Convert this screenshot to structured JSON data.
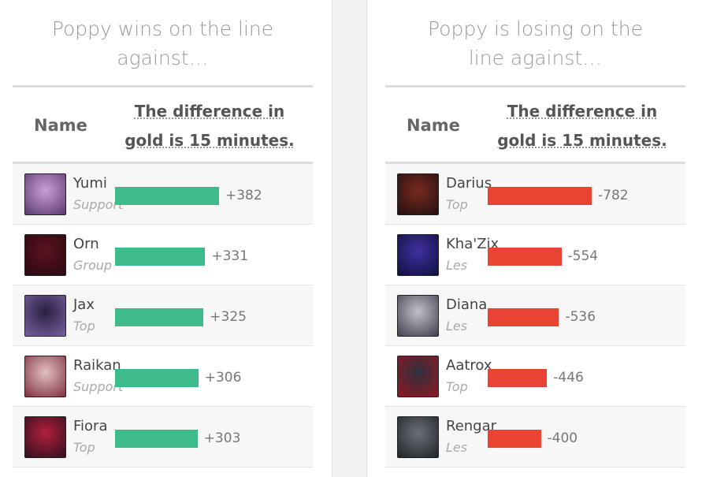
{
  "panels": [
    {
      "title": "Poppy wins on the line against…",
      "header_name": "Name",
      "header_diff": "The difference in gold is 15 minutes.",
      "bar_color": "#3dbb8b",
      "rows": [
        {
          "name": "Yumi",
          "role": "Support",
          "value": 382,
          "value_label": "+382"
        },
        {
          "name": "Orn",
          "role": "Group",
          "value": 331,
          "value_label": "+331"
        },
        {
          "name": "Jax",
          "role": "Top",
          "value": 325,
          "value_label": "+325"
        },
        {
          "name": "Raikan",
          "role": "Support",
          "value": 306,
          "value_label": "+306"
        },
        {
          "name": "Fiora",
          "role": "Top",
          "value": 303,
          "value_label": "+303"
        }
      ]
    },
    {
      "title": "Poppy is losing on the line against…",
      "header_name": "Name",
      "header_diff": "The difference in gold is 15 minutes.",
      "bar_color": "#e84333",
      "rows": [
        {
          "name": "Darius",
          "role": "Top",
          "value": -782
        },
        {
          "name": "Kha'Zix",
          "role": "Les",
          "value": -554
        },
        {
          "name": "Diana",
          "role": "Les",
          "value": -536
        },
        {
          "name": "Aatrox",
          "role": "Top",
          "value": -446
        },
        {
          "name": "Rengar",
          "role": "Les",
          "value": -400
        }
      ]
    }
  ]
}
